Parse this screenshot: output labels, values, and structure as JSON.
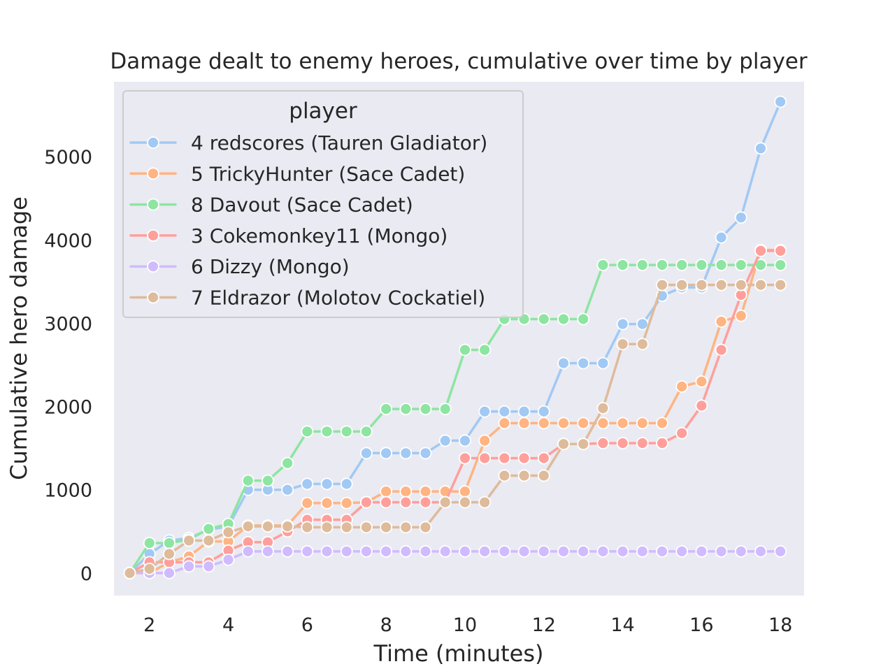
{
  "chart_data": {
    "type": "line",
    "title": "Damage dealt to enemy heroes, cumulative over time by player",
    "xlabel": "Time (minutes)",
    "ylabel": "Cumulative hero damage",
    "xlim": [
      1.1,
      18.6
    ],
    "ylim": [
      -270,
      5900
    ],
    "xticks": [
      2,
      4,
      6,
      8,
      10,
      12,
      14,
      16,
      18
    ],
    "yticks": [
      0,
      1000,
      2000,
      3000,
      4000,
      5000
    ],
    "grid": false,
    "legend": {
      "title": "player",
      "placement": "upper-left"
    },
    "x": [
      1.5,
      2,
      2.5,
      3,
      3.5,
      4,
      4.5,
      5,
      5.5,
      6,
      6.5,
      7,
      7.5,
      8,
      8.5,
      9,
      9.5,
      10,
      10.5,
      11,
      11.5,
      12,
      12.5,
      13,
      13.5,
      14,
      14.5,
      15,
      15.5,
      16,
      16.5,
      17,
      17.5,
      18
    ],
    "series": [
      {
        "name": "4 redscores (Tauren Gladiator)",
        "color": "#a1c9f4",
        "values": [
          0,
          230,
          390,
          420,
          520,
          560,
          1000,
          1000,
          1000,
          1070,
          1070,
          1070,
          1440,
          1440,
          1440,
          1440,
          1590,
          1590,
          1940,
          1940,
          1940,
          1940,
          2520,
          2520,
          2520,
          2990,
          2990,
          3330,
          3430,
          3430,
          4030,
          4270,
          5100,
          5660
        ]
      },
      {
        "name": "5 TrickyHunter (Sace Cadet)",
        "color": "#ffb482",
        "values": [
          0,
          0,
          130,
          200,
          380,
          380,
          570,
          570,
          570,
          840,
          840,
          840,
          850,
          980,
          980,
          980,
          980,
          980,
          1590,
          1800,
          1800,
          1800,
          1800,
          1800,
          1800,
          1800,
          1800,
          1800,
          2240,
          2300,
          3020,
          3090,
          3880,
          3880
        ]
      },
      {
        "name": "8 Davout (Sace Cadet)",
        "color": "#8de5a1",
        "values": [
          0,
          360,
          360,
          400,
          530,
          590,
          1110,
          1110,
          1320,
          1700,
          1700,
          1700,
          1700,
          1970,
          1970,
          1970,
          1970,
          2680,
          2680,
          3050,
          3050,
          3050,
          3050,
          3050,
          3700,
          3700,
          3700,
          3700,
          3700,
          3700,
          3700,
          3700,
          3700,
          3700
        ]
      },
      {
        "name": "3 Cokemonkey11 (Mongo)",
        "color": "#ff9f9b",
        "values": [
          0,
          130,
          130,
          130,
          130,
          270,
          370,
          370,
          500,
          640,
          640,
          640,
          850,
          850,
          850,
          850,
          850,
          1380,
          1380,
          1380,
          1380,
          1380,
          1550,
          1550,
          1560,
          1560,
          1560,
          1560,
          1680,
          2010,
          2680,
          3340,
          3870,
          3870
        ]
      },
      {
        "name": "6 Dizzy (Mongo)",
        "color": "#d0bbff",
        "values": [
          0,
          0,
          0,
          80,
          80,
          160,
          260,
          260,
          260,
          260,
          260,
          260,
          260,
          260,
          260,
          260,
          260,
          260,
          260,
          260,
          260,
          260,
          260,
          260,
          260,
          260,
          260,
          260,
          260,
          260,
          260,
          260,
          260,
          260
        ]
      },
      {
        "name": "7 Eldrazor (Molotov Cockatiel)",
        "color": "#debb9b",
        "values": [
          0,
          50,
          230,
          390,
          390,
          490,
          560,
          560,
          560,
          550,
          550,
          550,
          550,
          550,
          550,
          550,
          850,
          850,
          850,
          1170,
          1170,
          1170,
          1550,
          1550,
          1980,
          2750,
          2750,
          3460,
          3460,
          3460,
          3460,
          3460,
          3460,
          3460
        ]
      }
    ]
  }
}
